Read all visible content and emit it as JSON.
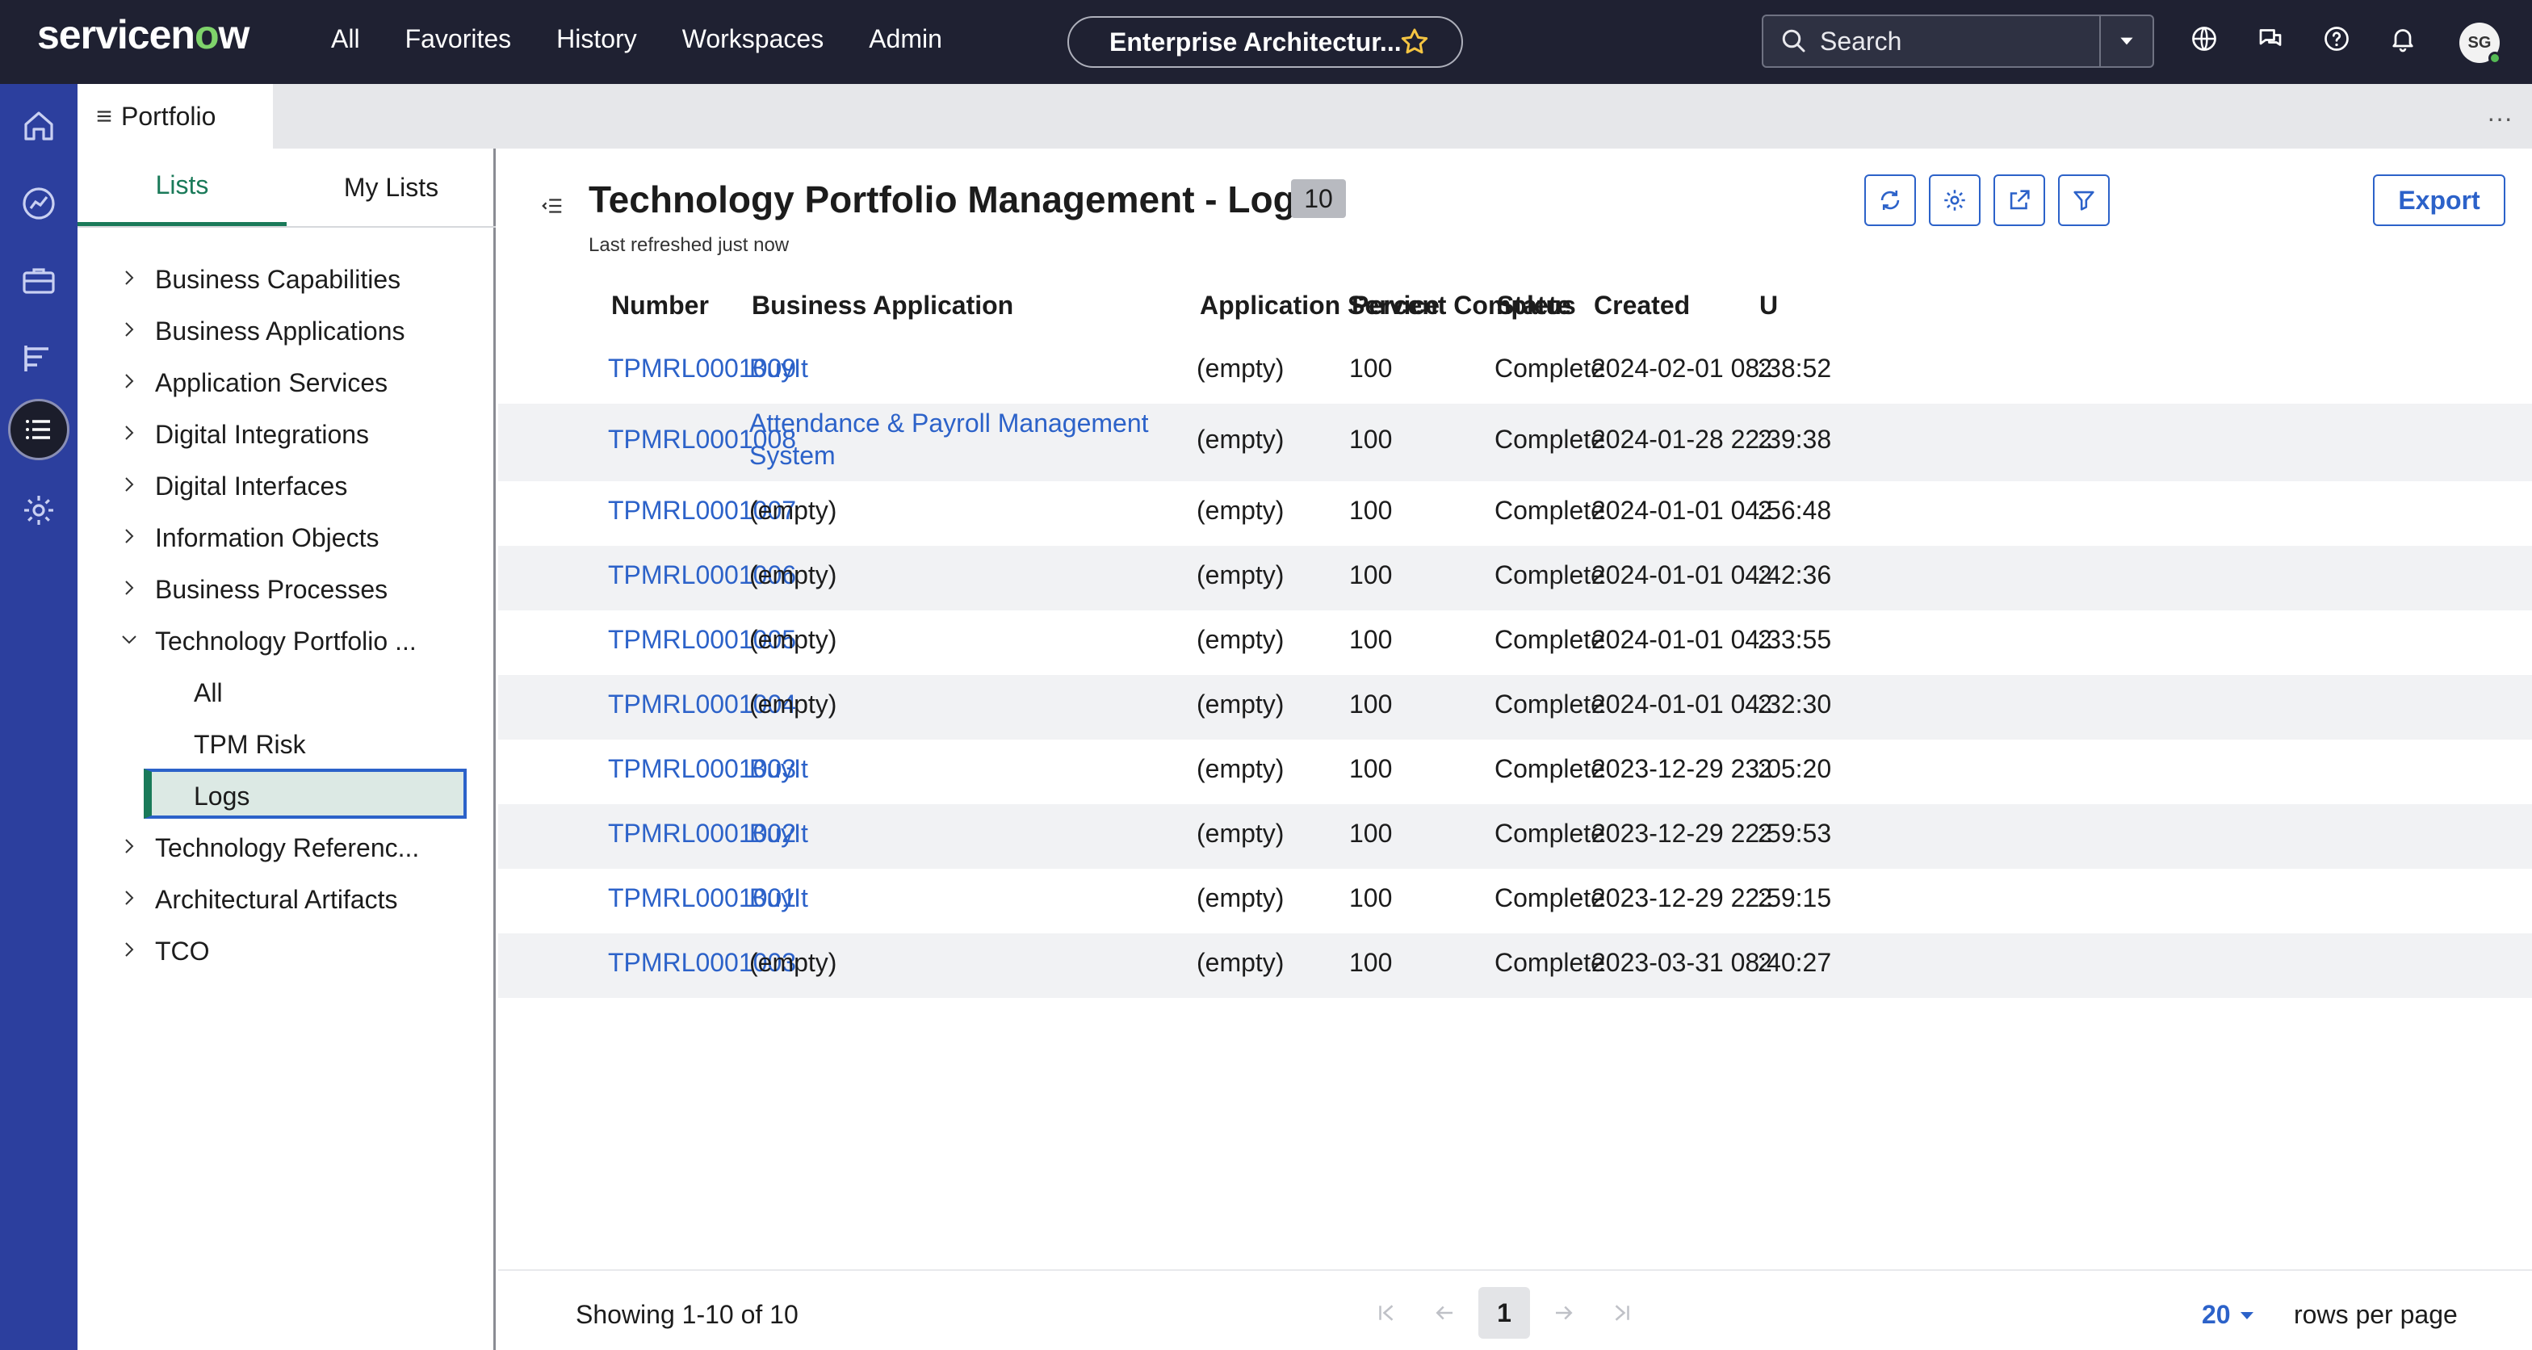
{
  "topbar": {
    "logo": "servicenow",
    "nav": [
      "All",
      "Favorites",
      "History",
      "Workspaces",
      "Admin"
    ],
    "context_title": "Enterprise Architectur...",
    "search_placeholder": "Search",
    "avatar_initials": "SG"
  },
  "tabstrip": {
    "tab_label": "Portfolio"
  },
  "side": {
    "tabs": [
      "Lists",
      "My Lists"
    ],
    "active_tab": "Lists",
    "tree": [
      {
        "label": "Business Capabilities",
        "expanded": false
      },
      {
        "label": "Business Applications",
        "expanded": false
      },
      {
        "label": "Application Services",
        "expanded": false
      },
      {
        "label": "Digital Integrations",
        "expanded": false
      },
      {
        "label": "Digital Interfaces",
        "expanded": false
      },
      {
        "label": "Information Objects",
        "expanded": false
      },
      {
        "label": "Business Processes",
        "expanded": false
      },
      {
        "label": "Technology Portfolio ...",
        "expanded": true,
        "children": [
          "All",
          "TPM Risk",
          "Logs"
        ]
      },
      {
        "label": "Technology Referenc...",
        "expanded": false
      },
      {
        "label": "Architectural Artifacts",
        "expanded": false
      },
      {
        "label": "TCO",
        "expanded": false
      }
    ],
    "selected_child": "Logs"
  },
  "main": {
    "title": "Technology Portfolio Management - Logs",
    "count": "10",
    "refreshed": "Last refreshed just now",
    "export_label": "Export",
    "columns": [
      "Number",
      "Business Application",
      "Application Service",
      "Percent Complete",
      "Status",
      "Created",
      "U"
    ],
    "rows": [
      {
        "number": "TPMRL0001009",
        "business_app": "BuyIt",
        "business_app_link": true,
        "app_service": "(empty)",
        "percent": "100",
        "status": "Complete",
        "created": "2024-02-01 08:38:52",
        "trunc": "2"
      },
      {
        "number": "TPMRL0001008",
        "business_app": "Attendance & Payroll Management",
        "business_app_line2": "System",
        "business_app_link": true,
        "app_service": "(empty)",
        "percent": "100",
        "status": "Complete",
        "created": "2024-01-28 22:39:38",
        "trunc": "2"
      },
      {
        "number": "TPMRL0001007",
        "business_app": "(empty)",
        "business_app_link": false,
        "app_service": "(empty)",
        "percent": "100",
        "status": "Complete",
        "created": "2024-01-01 04:56:48",
        "trunc": "2"
      },
      {
        "number": "TPMRL0001006",
        "business_app": "(empty)",
        "business_app_link": false,
        "app_service": "(empty)",
        "percent": "100",
        "status": "Complete",
        "created": "2024-01-01 04:42:36",
        "trunc": "2"
      },
      {
        "number": "TPMRL0001005",
        "business_app": "(empty)",
        "business_app_link": false,
        "app_service": "(empty)",
        "percent": "100",
        "status": "Complete",
        "created": "2024-01-01 04:33:55",
        "trunc": "2"
      },
      {
        "number": "TPMRL0001004",
        "business_app": "(empty)",
        "business_app_link": false,
        "app_service": "(empty)",
        "percent": "100",
        "status": "Complete",
        "created": "2024-01-01 04:32:30",
        "trunc": "2"
      },
      {
        "number": "TPMRL0001003",
        "business_app": "BuyIt",
        "business_app_link": true,
        "app_service": "(empty)",
        "percent": "100",
        "status": "Complete",
        "created": "2023-12-29 23:05:20",
        "trunc": "2"
      },
      {
        "number": "TPMRL0001002",
        "business_app": "BuyIt",
        "business_app_link": true,
        "app_service": "(empty)",
        "percent": "100",
        "status": "Complete",
        "created": "2023-12-29 22:59:53",
        "trunc": "2"
      },
      {
        "number": "TPMRL0001001",
        "business_app": "BuyIt",
        "business_app_link": true,
        "app_service": "(empty)",
        "percent": "100",
        "status": "Complete",
        "created": "2023-12-29 22:59:15",
        "trunc": "2"
      },
      {
        "number": "TPMRL0001003",
        "business_app": "(empty)",
        "business_app_link": false,
        "app_service": "(empty)",
        "percent": "100",
        "status": "Complete",
        "created": "2023-03-31 08:40:27",
        "trunc": "2"
      }
    ]
  },
  "footer": {
    "showing": "Showing 1-10 of 10",
    "current_page": "1",
    "rows_per_page": "20",
    "rows_per_page_label": "rows per page"
  },
  "colors": {
    "topbar": "#1f2132",
    "rail": "#2c3f9e",
    "accent_green": "#1a7a59",
    "link_blue": "#2c62c9"
  },
  "icons": {
    "rail": [
      "home-icon",
      "analytics-icon",
      "briefcase-icon",
      "roadmap-icon",
      "list-icon",
      "gear-icon"
    ],
    "toolbar": [
      "refresh-icon",
      "settings-icon",
      "share-icon",
      "filter-icon"
    ],
    "topbar": [
      "globe-icon",
      "chat-icon",
      "help-icon",
      "bell-icon"
    ]
  }
}
